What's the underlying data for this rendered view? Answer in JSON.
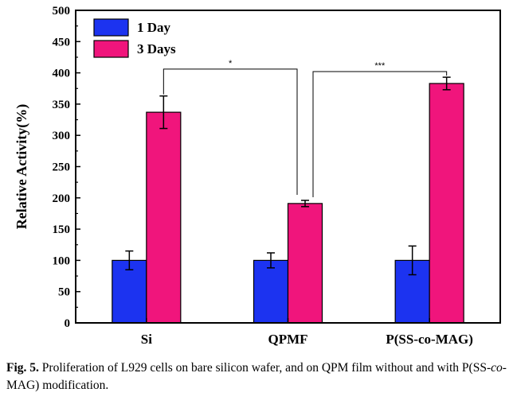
{
  "chart_data": {
    "type": "bar",
    "categories": [
      "Si",
      "QPMF",
      "P(SS-co-MAG)"
    ],
    "series": [
      {
        "name": "1 Day",
        "values": [
          100,
          100,
          100
        ],
        "errors": [
          15,
          12,
          23
        ],
        "color": "#1c33f0"
      },
      {
        "name": "3 Days",
        "values": [
          337,
          191,
          383
        ],
        "errors": [
          26,
          5,
          10
        ],
        "color": "#f0157c"
      }
    ],
    "xlabel": "",
    "ylabel": "Relative Activity(%)",
    "ylim": [
      0,
      500
    ],
    "yticks": [
      0,
      50,
      100,
      150,
      200,
      250,
      300,
      350,
      400,
      450,
      500
    ],
    "legend": "top-left",
    "grid": false,
    "significance": [
      {
        "from": "Si",
        "to": "QPMF",
        "label": "*"
      },
      {
        "from": "QPMF",
        "to": "P(SS-co-MAG)",
        "label": "***"
      }
    ]
  },
  "caption": {
    "label": "Fig. 5.",
    "text_before_italic": " Proliferation of L929 cells on bare silicon wafer, and on QPM film without and with P(SS-",
    "italic": "co",
    "text_after_italic": "-MAG) modification."
  }
}
